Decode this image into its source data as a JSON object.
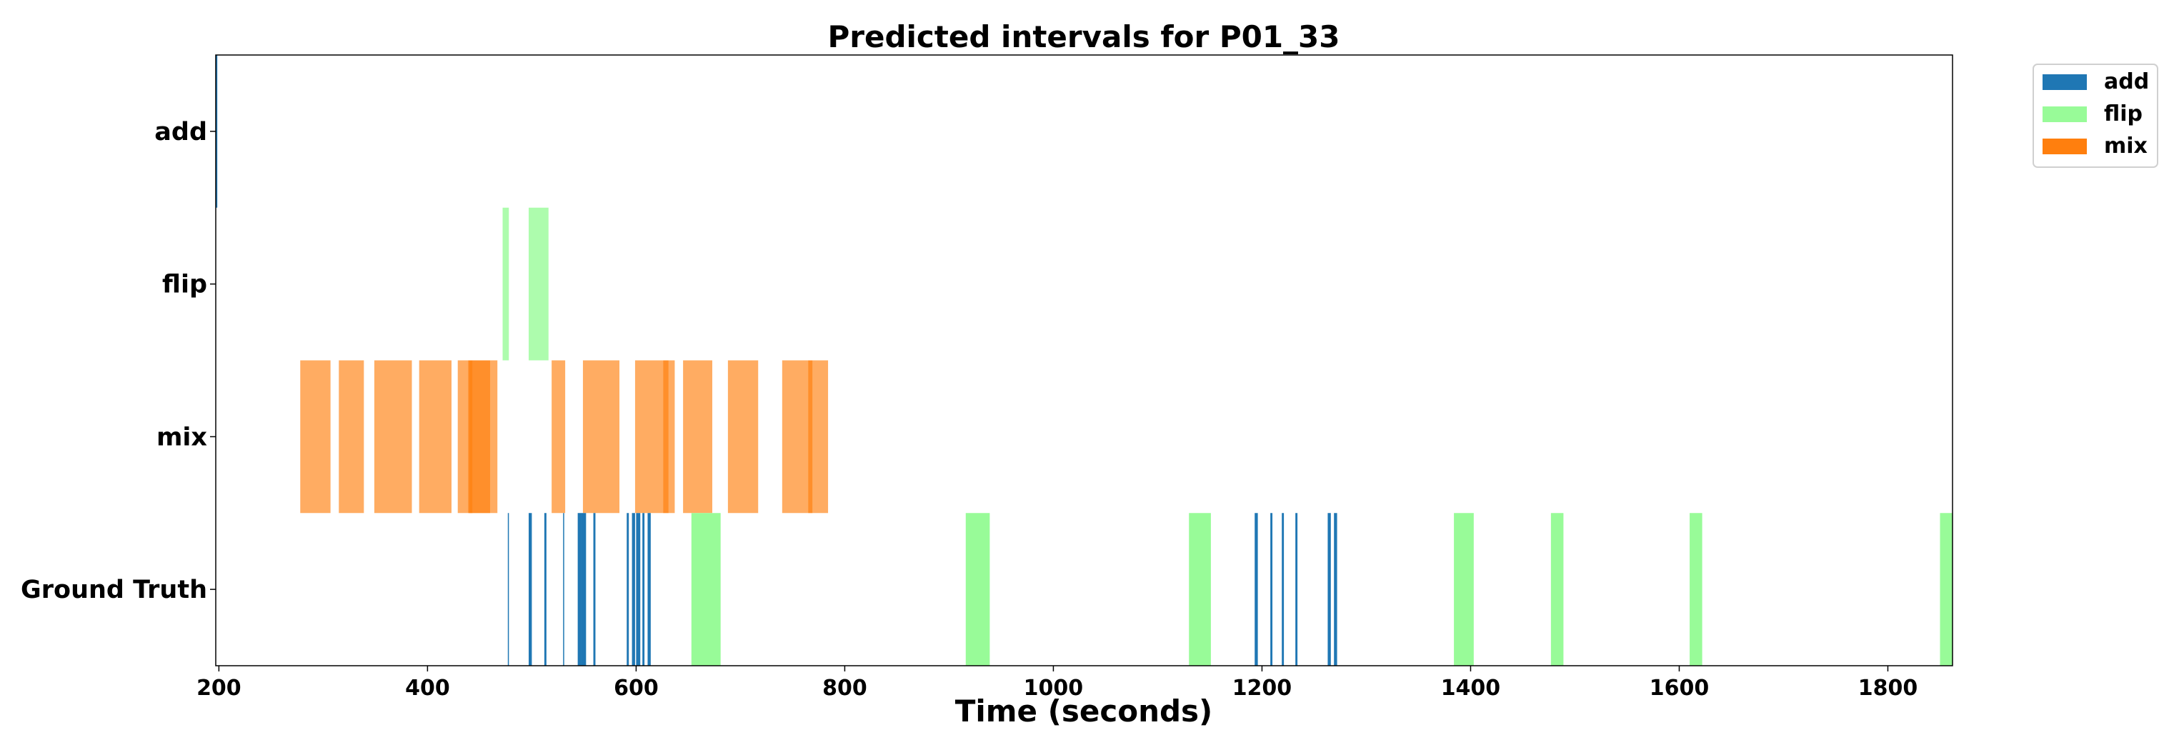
{
  "chart_data": {
    "type": "timeline",
    "title": "Predicted intervals for P01_33",
    "xlabel": "Time (seconds)",
    "ylabel": "",
    "xlim": [
      197,
      1862
    ],
    "xticks": [
      200,
      400,
      600,
      800,
      1000,
      1200,
      1400,
      1600,
      1800
    ],
    "rows": [
      "add",
      "flip",
      "mix",
      "Ground Truth"
    ],
    "legend": {
      "placement": "upper-right-outside",
      "entries": [
        {
          "label": "add",
          "color": "#1f77b4"
        },
        {
          "label": "flip",
          "color": "#98fb98"
        },
        {
          "label": "mix",
          "color": "#ff7f0e"
        }
      ]
    },
    "series": [
      {
        "row": "add",
        "label": "add",
        "color": "#1f77b4",
        "alpha": 1.0,
        "intervals": [
          [
            197,
            198.5
          ]
        ]
      },
      {
        "row": "flip",
        "label": "flip",
        "color": "#98fb98",
        "alpha": 0.8,
        "intervals": [
          [
            472,
            478
          ],
          [
            497,
            516
          ]
        ]
      },
      {
        "row": "mix",
        "label": "mix",
        "color": "#ff7f0e",
        "alpha": 0.65,
        "intervals": [
          [
            278,
            307
          ],
          [
            315,
            339
          ],
          [
            349,
            385
          ],
          [
            392,
            423
          ],
          [
            429,
            443
          ],
          [
            439,
            460
          ],
          [
            440,
            467
          ],
          [
            519,
            532
          ],
          [
            549,
            584
          ],
          [
            599,
            631
          ],
          [
            626,
            637
          ],
          [
            645,
            673
          ],
          [
            688,
            717
          ],
          [
            740,
            769
          ],
          [
            765,
            784
          ]
        ]
      },
      {
        "row": "Ground Truth",
        "label": "add",
        "color": "#1f77b4",
        "alpha": 1.0,
        "intervals": [
          [
            477,
            478
          ],
          [
            497,
            500
          ],
          [
            512,
            514
          ],
          [
            530,
            531
          ],
          [
            544,
            547
          ],
          [
            547,
            552
          ],
          [
            559,
            561
          ],
          [
            591,
            593
          ],
          [
            596,
            599
          ],
          [
            600,
            604
          ],
          [
            606,
            608
          ],
          [
            611,
            614
          ],
          [
            1193,
            1196
          ],
          [
            1208,
            1210
          ],
          [
            1219,
            1221
          ],
          [
            1232,
            1234
          ],
          [
            1263,
            1266
          ],
          [
            1269,
            1272
          ]
        ]
      },
      {
        "row": "Ground Truth",
        "label": "flip",
        "color": "#98fb98",
        "alpha": 1.0,
        "intervals": [
          [
            653,
            681
          ],
          [
            916,
            939
          ],
          [
            1130,
            1151
          ],
          [
            1384,
            1403
          ],
          [
            1477,
            1489
          ],
          [
            1610,
            1622
          ],
          [
            1850,
            1862
          ]
        ]
      }
    ]
  }
}
